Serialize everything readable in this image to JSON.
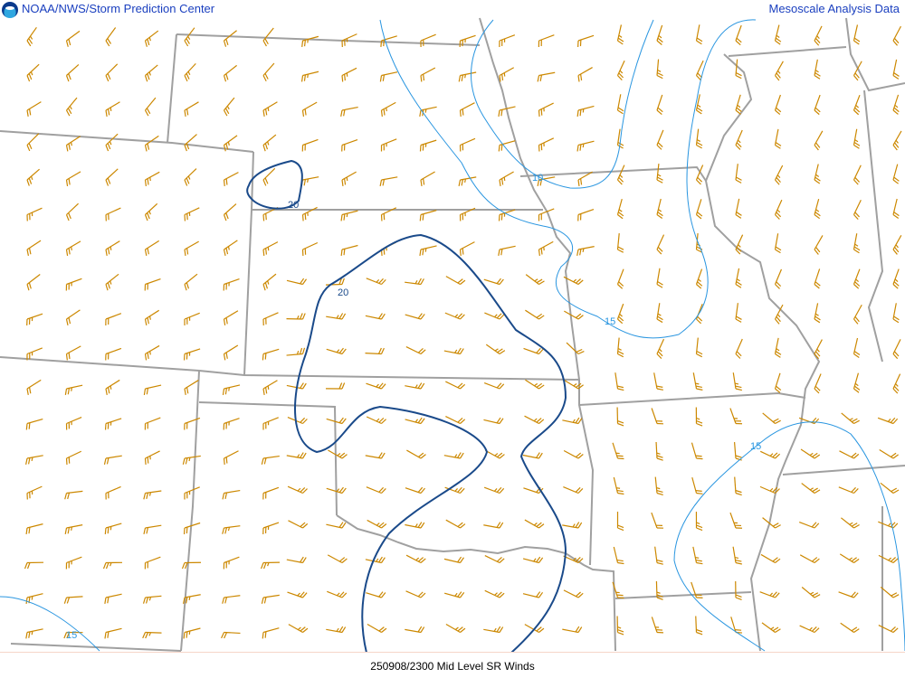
{
  "header": {
    "title_left": "NOAA/NWS/Storm Prediction Center",
    "title_right": "Mesoscale Analysis Data",
    "logo": "noaa-logo"
  },
  "footer": {
    "caption": "250908/2300 Mid Level SR Winds"
  },
  "colors": {
    "barb": "#cc8800",
    "contour_20": "#1a4a8a",
    "contour_light": "#2a96e0",
    "border": "#a0a0a0",
    "title": "#1a3fbf"
  },
  "contours": {
    "label_20_a": "20",
    "label_20_b": "20",
    "label_10": "10",
    "label_15_a": "15",
    "label_15_b": "15",
    "label_15_c": "15"
  }
}
